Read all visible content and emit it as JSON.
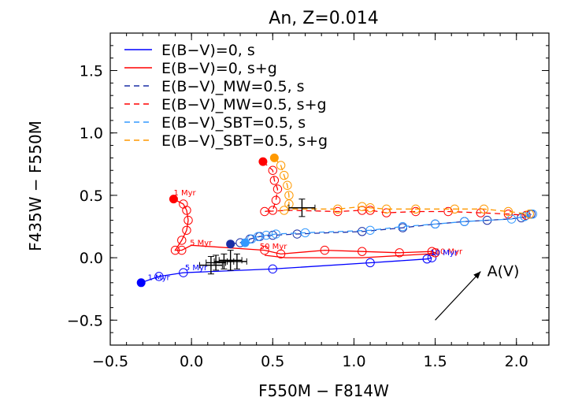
{
  "chart_data": {
    "type": "line",
    "title": "An, Z=0.014",
    "xlabel": "F550M − F814W",
    "ylabel": "F435W − F550M",
    "xlim": [
      -0.5,
      2.2
    ],
    "ylim": [
      -0.7,
      1.8
    ],
    "grid": false,
    "legend_position": "top-left",
    "x_ticks": [
      -0.5,
      0.0,
      0.5,
      1.0,
      1.5,
      2.0
    ],
    "x_tick_labels": [
      "−0.5",
      "0.0",
      "0.5",
      "1.0",
      "1.5",
      "2.0"
    ],
    "y_ticks": [
      -0.5,
      0.0,
      0.5,
      1.0,
      1.5
    ],
    "y_tick_labels": [
      "−0.5",
      "0.0",
      "0.5",
      "1.0",
      "1.5"
    ],
    "series": [
      {
        "name": "E(B−V)=0, s",
        "color": "#0000ff",
        "dash": "solid",
        "x": [
          -0.31,
          -0.2,
          -0.05,
          0.5,
          1.1,
          1.45,
          1.48
        ],
        "y": [
          -0.2,
          -0.15,
          -0.12,
          -0.09,
          -0.04,
          -0.01,
          0.0
        ],
        "marker_x": [
          -0.2,
          -0.05,
          0.5,
          1.1,
          1.45,
          1.48
        ],
        "marker_y": [
          -0.15,
          -0.12,
          -0.09,
          -0.04,
          -0.01,
          0.0
        ],
        "start": [
          -0.31,
          -0.2
        ]
      },
      {
        "name": "E(B−V)=0, s+g",
        "color": "#ff0000",
        "dash": "solid",
        "x": [
          -0.11,
          -0.05,
          -0.03,
          -0.02,
          -0.03,
          -0.06,
          -0.1,
          -0.06,
          0.0,
          0.45,
          0.55,
          0.82,
          1.05,
          1.28,
          1.48,
          1.5,
          1.45,
          1.05,
          0.58,
          0.45
        ],
        "y": [
          0.47,
          0.43,
          0.38,
          0.3,
          0.22,
          0.14,
          0.06,
          0.06,
          0.1,
          0.06,
          0.03,
          0.06,
          0.05,
          0.04,
          0.05,
          0.04,
          0.03,
          0.0,
          0.0,
          0.02
        ],
        "marker_x": [
          -0.05,
          -0.03,
          -0.02,
          -0.03,
          -0.06,
          -0.1,
          -0.06,
          0.45,
          0.55,
          0.82,
          1.05,
          1.28,
          1.48,
          1.5
        ],
        "marker_y": [
          0.43,
          0.38,
          0.3,
          0.22,
          0.14,
          0.06,
          0.06,
          0.06,
          0.03,
          0.06,
          0.05,
          0.04,
          0.05,
          0.04
        ],
        "start": [
          -0.11,
          0.47
        ]
      },
      {
        "name": "E(B−V)_MW=0.5, s",
        "color": "#1a2fa6",
        "dash": "dashed",
        "x": [
          0.24,
          0.3,
          0.36,
          0.42,
          0.5,
          0.65,
          0.85,
          1.05,
          1.3,
          1.5,
          1.68,
          1.82,
          1.95,
          2.03,
          2.06,
          2.09
        ],
        "y": [
          0.11,
          0.12,
          0.15,
          0.17,
          0.18,
          0.19,
          0.2,
          0.21,
          0.24,
          0.27,
          0.29,
          0.3,
          0.31,
          0.32,
          0.33,
          0.35
        ],
        "marker_x": [
          0.3,
          0.36,
          0.42,
          0.5,
          0.65,
          1.05,
          1.3,
          1.5,
          1.68,
          1.82,
          2.03,
          2.09
        ],
        "marker_y": [
          0.12,
          0.15,
          0.17,
          0.18,
          0.19,
          0.21,
          0.24,
          0.27,
          0.29,
          0.3,
          0.32,
          0.35
        ],
        "start": [
          0.24,
          0.11
        ]
      },
      {
        "name": "E(B−V)_MW=0.5, s+g",
        "color": "#ff0000",
        "dash": "dashed",
        "x": [
          0.44,
          0.5,
          0.51,
          0.53,
          0.52,
          0.5,
          0.45,
          0.6,
          0.9,
          1.05,
          1.1,
          1.2,
          1.38,
          1.58,
          1.78,
          1.95,
          2.06
        ],
        "y": [
          0.77,
          0.7,
          0.62,
          0.55,
          0.46,
          0.38,
          0.37,
          0.38,
          0.37,
          0.38,
          0.38,
          0.36,
          0.37,
          0.37,
          0.36,
          0.35,
          0.34
        ],
        "marker_x": [
          0.5,
          0.51,
          0.53,
          0.52,
          0.5,
          0.45,
          0.9,
          1.05,
          1.1,
          1.2,
          1.38,
          1.58,
          1.78,
          1.95,
          2.06
        ],
        "marker_y": [
          0.7,
          0.62,
          0.55,
          0.46,
          0.38,
          0.37,
          0.37,
          0.38,
          0.38,
          0.36,
          0.37,
          0.37,
          0.36,
          0.35,
          0.34
        ],
        "start": [
          0.44,
          0.77
        ]
      },
      {
        "name": "E(B−V)_SBT=0.5, s",
        "color": "#3399ff",
        "dash": "dashed",
        "x": [
          0.33,
          0.37,
          0.41,
          0.46,
          0.52,
          0.7,
          0.9,
          1.1,
          1.3,
          1.5,
          1.68,
          1.82,
          1.97,
          2.05,
          2.1
        ],
        "y": [
          0.12,
          0.15,
          0.17,
          0.18,
          0.19,
          0.2,
          0.21,
          0.22,
          0.25,
          0.27,
          0.29,
          0.3,
          0.31,
          0.33,
          0.35
        ],
        "marker_x": [
          0.37,
          0.41,
          0.46,
          0.52,
          0.7,
          1.1,
          1.3,
          1.5,
          1.68,
          1.97,
          2.05,
          2.1
        ],
        "marker_y": [
          0.15,
          0.17,
          0.18,
          0.19,
          0.2,
          0.22,
          0.25,
          0.27,
          0.29,
          0.31,
          0.33,
          0.35
        ],
        "start": [
          0.33,
          0.12
        ]
      },
      {
        "name": "E(B−V)_SBT=0.5, s+g",
        "color": "#ff9900",
        "dash": "dashed",
        "x": [
          0.51,
          0.55,
          0.57,
          0.59,
          0.6,
          0.6,
          0.57,
          0.62,
          0.72,
          0.9,
          1.05,
          1.1,
          1.2,
          1.38,
          1.62,
          1.8,
          1.95,
          2.08
        ],
        "y": [
          0.8,
          0.74,
          0.66,
          0.58,
          0.5,
          0.43,
          0.38,
          0.39,
          0.39,
          0.39,
          0.41,
          0.4,
          0.39,
          0.39,
          0.39,
          0.39,
          0.37,
          0.35
        ],
        "marker_x": [
          0.55,
          0.57,
          0.59,
          0.6,
          0.6,
          0.57,
          0.9,
          1.05,
          1.1,
          1.2,
          1.38,
          1.62,
          1.8,
          1.95,
          2.08
        ],
        "marker_y": [
          0.74,
          0.66,
          0.58,
          0.5,
          0.43,
          0.38,
          0.39,
          0.41,
          0.4,
          0.39,
          0.39,
          0.39,
          0.39,
          0.37,
          0.35
        ],
        "start": [
          0.51,
          0.8
        ]
      }
    ],
    "observed_points": [
      {
        "x": 0.68,
        "y": 0.4,
        "xerr": 0.08,
        "yerr": 0.07
      },
      {
        "x": 0.12,
        "y": -0.06,
        "xerr": 0.07,
        "yerr": 0.07
      },
      {
        "x": 0.15,
        "y": -0.04,
        "xerr": 0.06,
        "yerr": 0.06
      },
      {
        "x": 0.2,
        "y": -0.03,
        "xerr": 0.06,
        "yerr": 0.06
      },
      {
        "x": 0.24,
        "y": -0.02,
        "xerr": 0.07,
        "yerr": 0.08
      },
      {
        "x": 0.28,
        "y": -0.03,
        "xerr": 0.06,
        "yerr": 0.06
      }
    ],
    "age_labels": [
      {
        "text": "1 Myr",
        "x": -0.11,
        "y": 0.5,
        "color": "#ff0000"
      },
      {
        "text": "5 Myr",
        "x": -0.01,
        "y": 0.1,
        "color": "#ff0000"
      },
      {
        "text": "50 Myr",
        "x": 0.42,
        "y": 0.07,
        "color": "#ff0000"
      },
      {
        "text": "10 Myr",
        "x": 1.5,
        "y": 0.03,
        "color": "#ff0000"
      },
      {
        "text": "1 Myr",
        "x": -0.27,
        "y": -0.18,
        "color": "#0000ff"
      },
      {
        "text": "5 Myr",
        "x": -0.04,
        "y": -0.1,
        "color": "#0000ff"
      },
      {
        "text": "10 Myr",
        "x": 1.47,
        "y": 0.02,
        "color": "#0000ff"
      }
    ],
    "reddening_vector": {
      "label": "A(V)",
      "from": [
        1.5,
        -0.5
      ],
      "to": [
        1.78,
        -0.11
      ],
      "label_at": [
        1.82,
        -0.11
      ]
    }
  }
}
